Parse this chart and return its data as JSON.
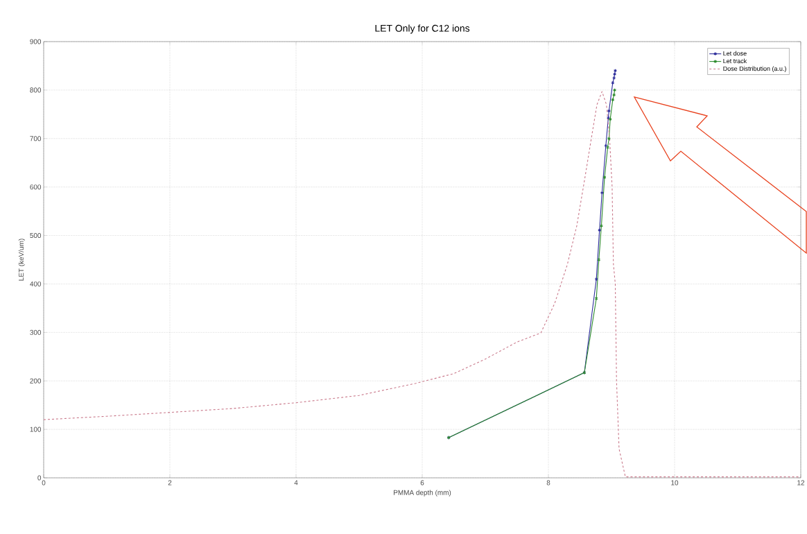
{
  "chart_data": {
    "type": "line",
    "title": "LET Only for C12 ions",
    "xlabel": "PMMA depth (mm)",
    "ylabel": "LET (keV/um)",
    "xlim": [
      0,
      12
    ],
    "ylim": [
      0,
      900
    ],
    "xticks": [
      0,
      2,
      4,
      6,
      8,
      10,
      12
    ],
    "yticks": [
      0,
      100,
      200,
      300,
      400,
      500,
      600,
      700,
      800,
      900
    ],
    "grid": true,
    "legend": "top right",
    "series": [
      {
        "name": "Let dose",
        "color": "#2b2b9a",
        "marker": "cross",
        "line_style": "solid",
        "x": [
          6.42,
          8.57,
          8.76,
          8.81,
          8.85,
          8.91,
          8.95,
          8.96,
          9.02,
          9.04,
          9.05,
          9.06
        ],
        "values": [
          83,
          217,
          410,
          511,
          588,
          685,
          743,
          757,
          815,
          825,
          833,
          840
        ]
      },
      {
        "name": "Let track",
        "color": "#2e8b2e",
        "marker": "cross",
        "line_style": "solid",
        "x": [
          6.42,
          8.57,
          8.76,
          8.8,
          8.84,
          8.89,
          8.94,
          8.96,
          8.98,
          9.02,
          9.04,
          9.05
        ],
        "values": [
          83,
          217,
          370,
          450,
          520,
          620,
          682,
          700,
          740,
          780,
          790,
          800
        ]
      },
      {
        "name": "Dose Distribution (a.u.)",
        "color": "#c9788a",
        "marker": "none",
        "line_style": "dashed",
        "x": [
          0,
          1,
          2,
          3,
          4,
          5,
          5.9,
          6.5,
          7,
          7.5,
          7.88,
          8.1,
          8.3,
          8.45,
          8.58,
          8.68,
          8.77,
          8.85,
          8.92,
          8.97,
          9.01,
          9.03,
          9.06,
          9.08,
          9.12,
          9.22,
          12
        ],
        "values": [
          120,
          127,
          135,
          143,
          155,
          170,
          195,
          215,
          245,
          280,
          299,
          360,
          440,
          520,
          620,
          700,
          770,
          797,
          770,
          700,
          600,
          442,
          400,
          200,
          60,
          2,
          2
        ]
      }
    ]
  }
}
